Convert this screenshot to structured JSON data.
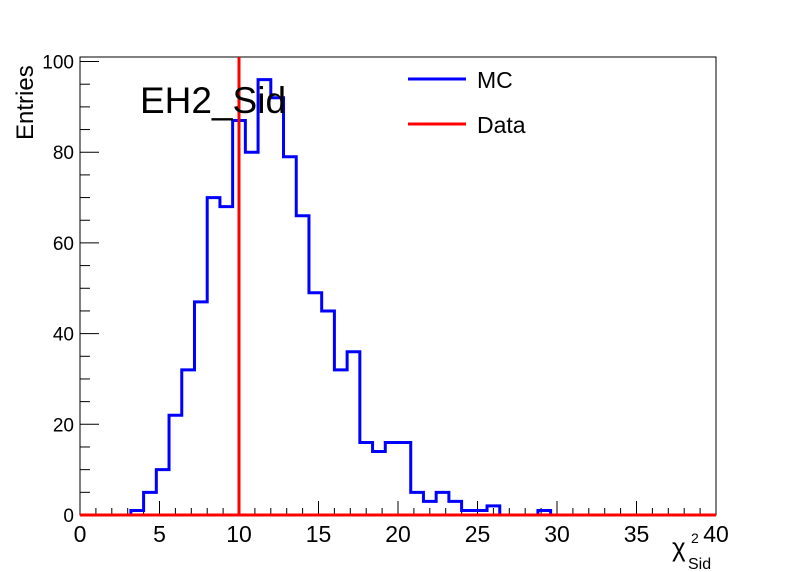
{
  "chart_data": {
    "type": "histogram",
    "title": "EH2_Sid",
    "ylabel": "Entries",
    "xlabel": {
      "base": "χ",
      "sup": "2",
      "sub": "Sid"
    },
    "xlim": [
      0,
      40
    ],
    "ylim": [
      0,
      101
    ],
    "x_ticks": [
      0,
      5,
      10,
      15,
      20,
      25,
      30,
      35,
      40
    ],
    "y_ticks": [
      0,
      20,
      40,
      60,
      80,
      100
    ],
    "legend_position": "top-right",
    "series": [
      {
        "name": "MC",
        "color": "#0000ff",
        "bin_width": 0.8,
        "bin_edges_start": 0,
        "values": [
          0,
          0,
          0,
          0,
          1,
          5,
          10,
          22,
          32,
          47,
          70,
          68,
          87,
          80,
          96,
          92,
          79,
          66,
          49,
          45,
          32,
          36,
          16,
          14,
          16,
          16,
          5,
          3,
          5,
          3,
          1,
          1,
          2,
          0,
          0,
          0,
          1,
          0,
          0,
          0,
          0,
          0,
          0,
          0,
          0,
          0,
          0,
          0,
          0,
          0
        ]
      },
      {
        "name": "Data",
        "color": "#ff0000",
        "x_value": 10
      }
    ]
  }
}
